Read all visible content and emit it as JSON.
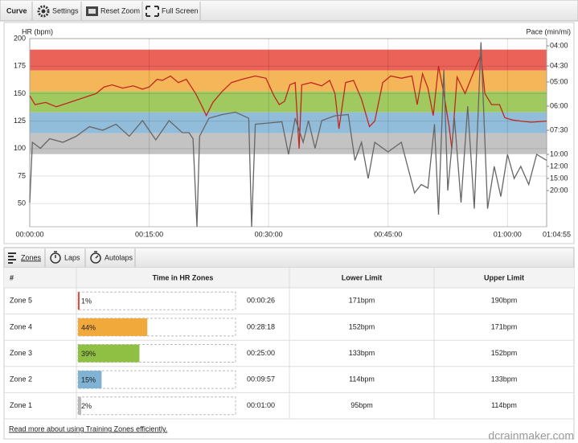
{
  "toolbar": {
    "title": "Curve",
    "buttons": [
      "Settings",
      "Reset Zoom",
      "Full Screen"
    ]
  },
  "chart_data": {
    "type": "line",
    "y_label": "HR (bpm)",
    "y2_label": "Pace (min/mi)",
    "grid": true,
    "xlim": [
      0,
      3895
    ],
    "xticks": [
      {
        "value": 0,
        "label": "00:00:00"
      },
      {
        "value": 900,
        "label": "00:15:00"
      },
      {
        "value": 1800,
        "label": "00:30:00"
      },
      {
        "value": 2700,
        "label": "00:45:00"
      },
      {
        "value": 3600,
        "label": "01:00:00"
      },
      {
        "value": 3895,
        "label": "01:04:55"
      }
    ],
    "ylim": [
      29,
      200
    ],
    "yticks": [
      50,
      75,
      100,
      125,
      150,
      175,
      200
    ],
    "y2lim": [
      0,
      15.6
    ],
    "y2ticks": [
      {
        "value": 15,
        "label": "04:00"
      },
      {
        "value": 13.33,
        "label": "04:30"
      },
      {
        "value": 12,
        "label": "05:00"
      },
      {
        "value": 10,
        "label": "06:00"
      },
      {
        "value": 8,
        "label": "07:30"
      },
      {
        "value": 6,
        "label": "10:00"
      },
      {
        "value": 5,
        "label": "12:00"
      },
      {
        "value": 4,
        "label": "15:00"
      },
      {
        "value": 3,
        "label": "20:00"
      }
    ],
    "series": [
      {
        "color": "#c0281e",
        "axis": "y",
        "x": [
          0,
          40,
          120,
          200,
          300,
          400,
          500,
          560,
          620,
          700,
          780,
          850,
          900,
          960,
          1000,
          1060,
          1120,
          1180,
          1250,
          1300,
          1330,
          1380,
          1450,
          1520,
          1600,
          1700,
          1780,
          1840,
          1880,
          1920,
          1960,
          2000,
          2030,
          2050,
          2120,
          2200,
          2260,
          2300,
          2330,
          2380,
          2440,
          2500,
          2560,
          2600,
          2660,
          2720,
          2800,
          2880,
          2920,
          2960,
          3000,
          3040,
          3080,
          3120,
          3160,
          3180,
          3220,
          3280,
          3340,
          3400,
          3430,
          3480,
          3540,
          3580,
          3640,
          3700,
          3780,
          3895
        ],
        "values": [
          148,
          140,
          142,
          138,
          142,
          146,
          150,
          156,
          158,
          155,
          157,
          154,
          156,
          163,
          162,
          166,
          160,
          163,
          150,
          138,
          130,
          142,
          152,
          160,
          163,
          166,
          164,
          148,
          140,
          143,
          158,
          160,
          100,
          158,
          160,
          157,
          162,
          150,
          118,
          160,
          162,
          145,
          120,
          125,
          160,
          166,
          164,
          166,
          140,
          168,
          155,
          130,
          175,
          150,
          120,
          100,
          165,
          150,
          168,
          185,
          150,
          140,
          140,
          128,
          126,
          125,
          124,
          125
        ]
      },
      {
        "color": "#666666",
        "axis": "y2",
        "x": [
          0,
          20,
          80,
          150,
          250,
          350,
          450,
          550,
          650,
          750,
          850,
          950,
          1050,
          1150,
          1200,
          1230,
          1260,
          1280,
          1350,
          1450,
          1550,
          1650,
          1672,
          1700,
          1800,
          1900,
          1950,
          2000,
          2060,
          2100,
          2150,
          2200,
          2300,
          2400,
          2450,
          2500,
          2550,
          2600,
          2700,
          2800,
          2900,
          2950,
          3000,
          3050,
          3080,
          3120,
          3150,
          3200,
          3250,
          3300,
          3350,
          3400,
          3450,
          3500,
          3550,
          3600,
          3650,
          3700,
          3760,
          3820,
          3895
        ],
        "values": [
          2,
          7,
          6.5,
          7.3,
          7,
          7.5,
          8.3,
          8,
          8.5,
          7.5,
          8.8,
          7.2,
          8.8,
          7.8,
          7.8,
          7.3,
          0,
          7.5,
          9,
          9.3,
          9.5,
          9,
          0,
          8.5,
          8.6,
          8.7,
          6,
          9,
          7,
          8.8,
          6.5,
          8.8,
          9.2,
          9.3,
          5.5,
          7,
          4,
          7,
          6.2,
          7,
          2.8,
          3.5,
          3.2,
          8.5,
          1,
          13,
          3,
          9,
          2,
          10,
          1.5,
          15.3,
          1.5,
          5,
          2.5,
          6,
          4,
          5,
          3.5,
          6,
          5.5
        ]
      }
    ]
  },
  "tabs": [
    "Zones",
    "Laps",
    "Autolaps"
  ],
  "table": {
    "headers": [
      "#",
      "Time in HR Zones",
      "Lower Limit",
      "Upper Limit"
    ],
    "rows": [
      {
        "zone": "Zone 5",
        "percent": {
          "value": 1,
          "label": "1%"
        },
        "time": "00:00:26",
        "lower": {
          "value": 171,
          "label": "171bpm"
        },
        "upper": {
          "value": 190,
          "label": "190bpm"
        },
        "color": "#e8473c"
      },
      {
        "zone": "Zone 4",
        "percent": {
          "value": 44,
          "label": "44%"
        },
        "time": "00:28:18",
        "lower": {
          "value": 152,
          "label": "152bpm"
        },
        "upper": {
          "value": 171,
          "label": "171bpm"
        },
        "color": "#f2a93b"
      },
      {
        "zone": "Zone 3",
        "percent": {
          "value": 39,
          "label": "39%"
        },
        "time": "00:25:00",
        "lower": {
          "value": 133,
          "label": "133bpm"
        },
        "upper": {
          "value": 152,
          "label": "152bpm"
        },
        "color": "#8fbf43"
      },
      {
        "zone": "Zone 2",
        "percent": {
          "value": 15,
          "label": "15%"
        },
        "time": "00:09:57",
        "lower": {
          "value": 114,
          "label": "114bpm"
        },
        "upper": {
          "value": 133,
          "label": "133bpm"
        },
        "color": "#7fb2d3"
      },
      {
        "zone": "Zone 1",
        "percent": {
          "value": 2,
          "label": "2%"
        },
        "time": "00:01:00",
        "lower": {
          "value": 95,
          "label": "95bpm"
        },
        "upper": {
          "value": 114,
          "label": "114bpm"
        },
        "color": "#b8b8b8"
      }
    ]
  },
  "footer_link": "Read more about using Training Zones efficiently.",
  "watermark": "dcrainmaker.com"
}
